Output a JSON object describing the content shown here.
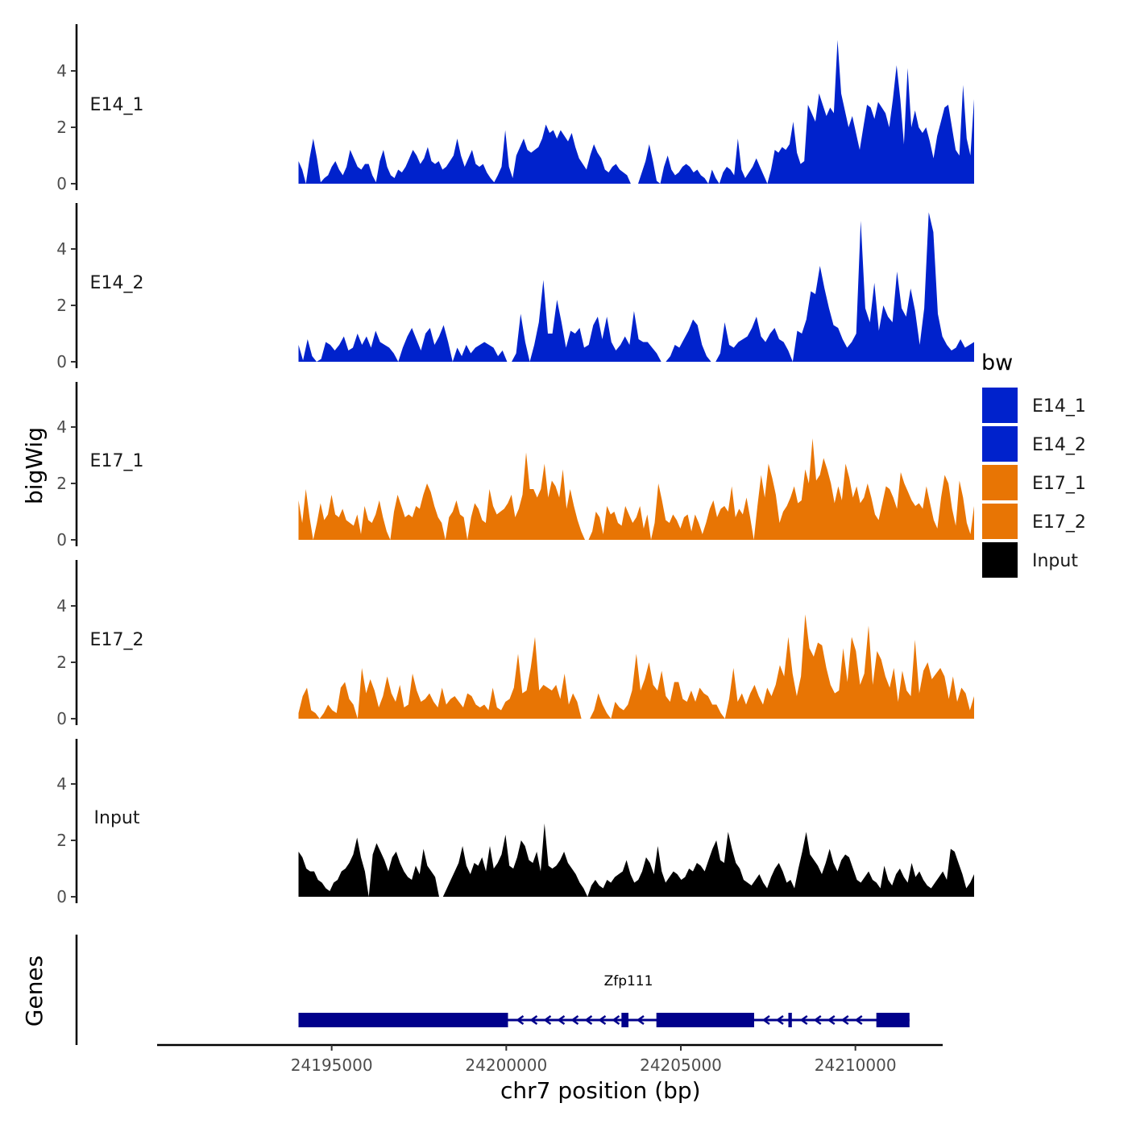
{
  "chart_data": {
    "type": "area",
    "title": "",
    "xlabel": "chr7 position (bp)",
    "ylabel": "bigWig",
    "genes_panel_label": "Genes",
    "xlim": [
      24190000,
      24212500
    ],
    "x_ticks": [
      24195000,
      24200000,
      24205000,
      24210000
    ],
    "x_tick_labels": [
      "24195000",
      "24200000",
      "24205000",
      "24210000"
    ],
    "ylim": [
      0,
      5.5
    ],
    "y_ticks": [
      0,
      2,
      4
    ],
    "y_tick_labels": [
      "0",
      "2",
      "4"
    ],
    "legend": {
      "title": "bw",
      "position": "right",
      "entries": [
        {
          "label": "E14_1",
          "color": "#0022CC"
        },
        {
          "label": "E14_2",
          "color": "#0022CC"
        },
        {
          "label": "E17_1",
          "color": "#E87504"
        },
        {
          "label": "E17_2",
          "color": "#E87504"
        },
        {
          "label": "Input",
          "color": "#000000"
        }
      ]
    },
    "series": [
      {
        "name": "E14_1",
        "color": "#0022CC",
        "x_range": [
          24194050,
          24213400
        ],
        "values": [
          0.8,
          0.5,
          0.0,
          0.9,
          1.6,
          0.9,
          0.05,
          0.2,
          0.3,
          0.6,
          0.8,
          0.5,
          0.3,
          0.6,
          1.2,
          0.9,
          0.6,
          0.5,
          0.7,
          0.7,
          0.3,
          0.05,
          0.8,
          1.2,
          0.6,
          0.3,
          0.2,
          0.5,
          0.4,
          0.6,
          0.9,
          1.2,
          1.0,
          0.7,
          0.9,
          1.3,
          0.8,
          0.7,
          0.8,
          0.5,
          0.6,
          0.8,
          1.0,
          1.6,
          1.0,
          0.6,
          0.9,
          1.2,
          0.7,
          0.6,
          0.7,
          0.4,
          0.2,
          0.05,
          0.3,
          0.6,
          1.9,
          0.6,
          0.2,
          1.0,
          1.3,
          1.6,
          1.2,
          1.1,
          1.2,
          1.3,
          1.6,
          2.1,
          1.8,
          1.9,
          1.6,
          1.9,
          1.7,
          1.5,
          1.8,
          1.3,
          0.9,
          0.7,
          0.5,
          1.0,
          1.4,
          1.1,
          0.9,
          0.5,
          0.4,
          0.6,
          0.7,
          0.5,
          0.4,
          0.3,
          0.0,
          0.0,
          0.0,
          0.4,
          0.8,
          1.4,
          0.8,
          0.1,
          0.0,
          0.6,
          1.0,
          0.5,
          0.3,
          0.4,
          0.6,
          0.7,
          0.6,
          0.4,
          0.5,
          0.3,
          0.2,
          0.0,
          0.5,
          0.2,
          0.0,
          0.4,
          0.6,
          0.5,
          0.3,
          1.6,
          0.5,
          0.2,
          0.4,
          0.6,
          0.9,
          0.6,
          0.3,
          0.0,
          0.5,
          1.2,
          1.1,
          1.3,
          1.2,
          1.4,
          2.2,
          1.1,
          0.7,
          0.8,
          2.8,
          2.5,
          2.2,
          3.2,
          2.8,
          2.4,
          2.7,
          2.5,
          5.1,
          3.2,
          2.6,
          2.0,
          2.4,
          1.8,
          1.2,
          2.0,
          2.8,
          2.7,
          2.3,
          2.9,
          2.7,
          2.5,
          2.0,
          3.0,
          4.2,
          3.0,
          1.4,
          4.1,
          2.0,
          2.6,
          2.0,
          1.8,
          2.0,
          1.5,
          0.9,
          1.7,
          2.2,
          2.7,
          2.8,
          2.0,
          1.2,
          1.0,
          3.5,
          1.6,
          1.0,
          3.0
        ]
      },
      {
        "name": "E14_2",
        "color": "#0022CC",
        "x_range": [
          24194050,
          24213400
        ],
        "values": [
          0.6,
          0.05,
          0.8,
          0.2,
          0.0,
          0.1,
          0.7,
          0.6,
          0.4,
          0.6,
          0.9,
          0.4,
          0.5,
          1.0,
          0.6,
          0.9,
          0.5,
          1.1,
          0.7,
          0.6,
          0.5,
          0.3,
          0.0,
          0.5,
          0.9,
          1.2,
          0.8,
          0.4,
          1.0,
          1.2,
          0.6,
          0.9,
          1.3,
          0.7,
          0.0,
          0.5,
          0.2,
          0.6,
          0.3,
          0.5,
          0.6,
          0.7,
          0.6,
          0.5,
          0.2,
          0.4,
          0.0,
          0.0,
          0.3,
          1.7,
          0.7,
          0.0,
          0.6,
          1.4,
          2.9,
          1.0,
          1.0,
          2.2,
          1.4,
          0.5,
          1.1,
          1.0,
          1.2,
          0.5,
          0.6,
          1.3,
          1.6,
          0.8,
          1.6,
          0.7,
          0.4,
          0.6,
          0.9,
          0.6,
          1.8,
          0.8,
          0.7,
          0.7,
          0.5,
          0.3,
          0.0,
          0.0,
          0.2,
          0.6,
          0.5,
          0.8,
          1.1,
          1.5,
          1.3,
          0.6,
          0.2,
          0.0,
          0.0,
          0.3,
          1.4,
          0.6,
          0.5,
          0.7,
          0.8,
          0.9,
          1.2,
          1.6,
          0.9,
          0.7,
          1.0,
          1.2,
          0.8,
          0.7,
          0.4,
          0.0,
          1.1,
          1.0,
          1.5,
          2.5,
          2.4,
          3.4,
          2.6,
          1.9,
          1.3,
          1.2,
          0.8,
          0.5,
          0.7,
          1.0,
          5.0,
          1.9,
          1.4,
          2.8,
          1.1,
          2.0,
          1.6,
          1.4,
          3.2,
          1.9,
          1.6,
          2.6,
          1.8,
          0.6,
          1.9,
          5.3,
          4.6,
          1.7,
          0.9,
          0.6,
          0.4,
          0.5,
          0.8,
          0.5,
          0.6,
          0.7
        ]
      },
      {
        "name": "E17_1",
        "color": "#E87504",
        "x_range": [
          24194050,
          24213400
        ],
        "values": [
          1.4,
          0.6,
          1.8,
          0.8,
          0.0,
          0.6,
          1.3,
          0.7,
          0.9,
          1.6,
          0.9,
          0.8,
          1.1,
          0.7,
          0.6,
          0.5,
          0.9,
          0.2,
          1.2,
          0.7,
          0.6,
          0.9,
          1.4,
          0.8,
          0.3,
          0.0,
          1.0,
          1.6,
          1.2,
          0.8,
          0.9,
          0.8,
          1.2,
          1.1,
          1.6,
          2.0,
          1.7,
          1.2,
          0.8,
          0.6,
          0.0,
          0.8,
          1.0,
          1.4,
          0.9,
          0.8,
          0.0,
          0.8,
          1.3,
          1.1,
          0.7,
          0.6,
          1.8,
          1.2,
          0.9,
          1.0,
          1.1,
          1.3,
          1.6,
          0.8,
          1.1,
          1.6,
          3.1,
          1.8,
          1.8,
          1.5,
          1.8,
          2.7,
          1.5,
          2.1,
          1.9,
          1.5,
          2.5,
          1.1,
          1.8,
          1.2,
          0.7,
          0.3,
          0.0,
          0.0,
          0.3,
          1.0,
          0.8,
          0.2,
          1.2,
          0.9,
          1.0,
          0.6,
          0.5,
          1.2,
          0.9,
          0.6,
          0.8,
          1.2,
          0.4,
          0.9,
          0.0,
          0.6,
          2.0,
          1.4,
          0.7,
          0.6,
          0.9,
          0.7,
          0.4,
          0.8,
          0.9,
          0.3,
          0.9,
          0.6,
          0.2,
          0.6,
          1.1,
          1.4,
          0.8,
          1.1,
          1.2,
          1.0,
          1.9,
          0.8,
          1.1,
          0.9,
          1.5,
          0.8,
          0.0,
          1.2,
          2.3,
          1.5,
          2.7,
          2.2,
          1.6,
          0.6,
          1.0,
          1.2,
          1.5,
          1.9,
          1.3,
          1.4,
          2.5,
          2.0,
          3.6,
          2.1,
          2.3,
          2.9,
          2.5,
          2.0,
          1.3,
          1.9,
          1.4,
          2.7,
          2.2,
          1.5,
          1.9,
          1.3,
          1.5,
          2.0,
          1.5,
          0.9,
          0.7,
          1.3,
          1.9,
          1.8,
          1.5,
          1.1,
          2.4,
          2.0,
          1.7,
          1.4,
          1.2,
          1.3,
          1.1,
          1.9,
          1.3,
          0.7,
          0.4,
          1.5,
          2.3,
          2.0,
          1.1,
          0.5,
          2.1,
          1.5,
          0.6,
          0.2,
          1.2
        ]
      },
      {
        "name": "E17_2",
        "color": "#E87504",
        "x_range": [
          24194050,
          24213400
        ],
        "values": [
          0.2,
          0.8,
          1.1,
          0.3,
          0.2,
          0.0,
          0.2,
          0.5,
          0.3,
          0.2,
          1.1,
          1.3,
          0.7,
          0.5,
          0.0,
          1.8,
          0.9,
          1.4,
          1.0,
          0.4,
          0.8,
          1.5,
          0.9,
          0.6,
          1.2,
          0.4,
          0.5,
          1.6,
          1.0,
          0.6,
          0.7,
          0.9,
          0.6,
          0.4,
          1.1,
          0.5,
          0.7,
          0.8,
          0.6,
          0.4,
          0.9,
          0.8,
          0.5,
          0.4,
          0.5,
          0.3,
          1.1,
          0.4,
          0.3,
          0.6,
          0.7,
          1.1,
          2.3,
          0.9,
          1.0,
          1.8,
          2.9,
          1.0,
          1.2,
          1.1,
          1.0,
          1.2,
          0.7,
          1.6,
          0.5,
          0.9,
          0.6,
          0.0,
          0.0,
          0.0,
          0.3,
          0.9,
          0.5,
          0.2,
          0.0,
          0.6,
          0.4,
          0.3,
          0.5,
          1.0,
          2.3,
          1.0,
          1.4,
          2.0,
          1.2,
          1.0,
          1.7,
          0.8,
          0.6,
          1.3,
          1.3,
          0.7,
          0.6,
          1.0,
          0.6,
          1.1,
          0.9,
          0.8,
          0.5,
          0.5,
          0.2,
          0.0,
          0.7,
          1.8,
          0.6,
          0.9,
          0.5,
          0.9,
          1.2,
          0.8,
          0.5,
          1.1,
          0.8,
          1.2,
          1.9,
          1.5,
          2.9,
          1.6,
          0.8,
          1.5,
          3.7,
          2.5,
          2.2,
          2.7,
          2.6,
          1.8,
          1.2,
          0.9,
          1.0,
          2.5,
          1.3,
          2.9,
          2.4,
          1.2,
          1.6,
          3.3,
          1.2,
          2.4,
          2.1,
          1.5,
          1.1,
          1.8,
          0.6,
          1.7,
          1.0,
          0.8,
          2.8,
          0.9,
          1.7,
          2.0,
          1.4,
          1.6,
          1.8,
          1.5,
          0.7,
          1.5,
          0.6,
          1.1,
          0.9,
          0.3,
          0.8
        ]
      },
      {
        "name": "Input",
        "color": "#000000",
        "x_range": [
          24194050,
          24213400
        ],
        "values": [
          1.6,
          1.4,
          1.0,
          0.9,
          0.9,
          0.6,
          0.5,
          0.3,
          0.2,
          0.5,
          0.6,
          0.9,
          1.0,
          1.2,
          1.5,
          2.1,
          1.4,
          0.9,
          0.0,
          1.5,
          1.9,
          1.6,
          1.3,
          0.9,
          1.4,
          1.6,
          1.2,
          0.9,
          0.7,
          0.6,
          1.1,
          0.8,
          1.7,
          1.1,
          0.9,
          0.7,
          0.0,
          0.0,
          0.3,
          0.6,
          0.9,
          1.2,
          1.8,
          1.1,
          0.8,
          1.2,
          1.1,
          1.4,
          0.9,
          1.8,
          1.0,
          1.2,
          1.5,
          2.2,
          1.1,
          1.0,
          1.4,
          2.0,
          1.8,
          1.3,
          1.2,
          1.6,
          0.9,
          2.6,
          1.1,
          1.0,
          1.1,
          1.3,
          1.6,
          1.2,
          1.0,
          0.8,
          0.5,
          0.3,
          0.0,
          0.4,
          0.6,
          0.4,
          0.3,
          0.6,
          0.5,
          0.7,
          0.8,
          0.9,
          1.3,
          0.8,
          0.5,
          0.6,
          0.9,
          1.4,
          1.2,
          0.8,
          1.8,
          0.9,
          0.5,
          0.7,
          0.9,
          0.8,
          0.6,
          0.7,
          1.0,
          0.9,
          1.2,
          1.1,
          0.9,
          1.3,
          1.7,
          2.0,
          1.3,
          1.2,
          2.3,
          1.7,
          1.2,
          1.0,
          0.6,
          0.5,
          0.4,
          0.6,
          0.8,
          0.5,
          0.3,
          0.7,
          1.0,
          1.2,
          0.9,
          0.5,
          0.6,
          0.3,
          1.0,
          1.6,
          2.3,
          1.5,
          1.3,
          1.1,
          0.8,
          1.2,
          1.7,
          1.2,
          0.9,
          1.3,
          1.5,
          1.4,
          1.0,
          0.6,
          0.5,
          0.7,
          0.9,
          0.6,
          0.5,
          0.3,
          1.1,
          0.6,
          0.4,
          0.8,
          1.0,
          0.7,
          0.5,
          1.2,
          0.7,
          0.9,
          0.6,
          0.4,
          0.3,
          0.5,
          0.7,
          0.9,
          0.6,
          1.7,
          1.6,
          1.2,
          0.8,
          0.3,
          0.5,
          0.8
        ]
      }
    ],
    "genes": [
      {
        "name": "Zfp111",
        "strand": "-",
        "start": 24194050,
        "end": 24211550,
        "exons": [
          [
            24194050,
            24200050
          ],
          [
            24203300,
            24203500
          ],
          [
            24204300,
            24207100
          ],
          [
            24208080,
            24208180
          ],
          [
            24210600,
            24211550
          ]
        ]
      }
    ]
  }
}
